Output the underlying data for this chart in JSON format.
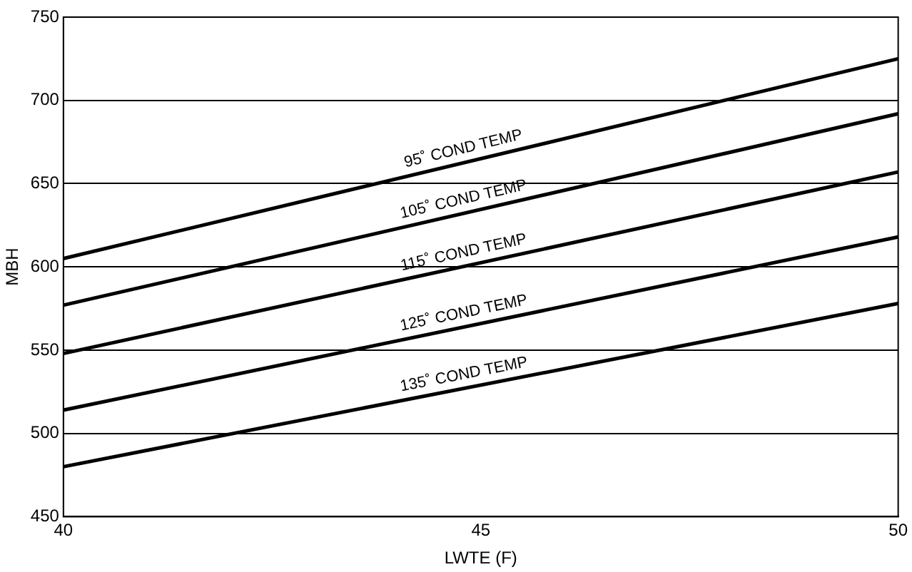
{
  "chart_data": {
    "type": "line",
    "xlabel": "LWTE (F)",
    "ylabel": "MBH",
    "x": [
      40,
      50
    ],
    "series": [
      {
        "name": "95˚ COND TEMP",
        "color": "#000000",
        "values": [
          605,
          725
        ]
      },
      {
        "name": "105˚ COND TEMP",
        "color": "#000000",
        "values": [
          577,
          692
        ]
      },
      {
        "name": "115˚ COND TEMP",
        "color": "#000000",
        "values": [
          548,
          657
        ]
      },
      {
        "name": "125˚ COND TEMP",
        "color": "#000000",
        "values": [
          514,
          618
        ]
      },
      {
        "name": "135˚ COND TEMP",
        "color": "#000000",
        "values": [
          480,
          578
        ]
      }
    ],
    "xlim": [
      40,
      50
    ],
    "xticks": [
      40,
      45,
      50
    ],
    "ylim": [
      450,
      750
    ],
    "yticks": [
      450,
      500,
      550,
      600,
      650,
      700,
      750
    ],
    "grid": "y",
    "legend": false,
    "marker": "none",
    "line_style": "solid"
  }
}
